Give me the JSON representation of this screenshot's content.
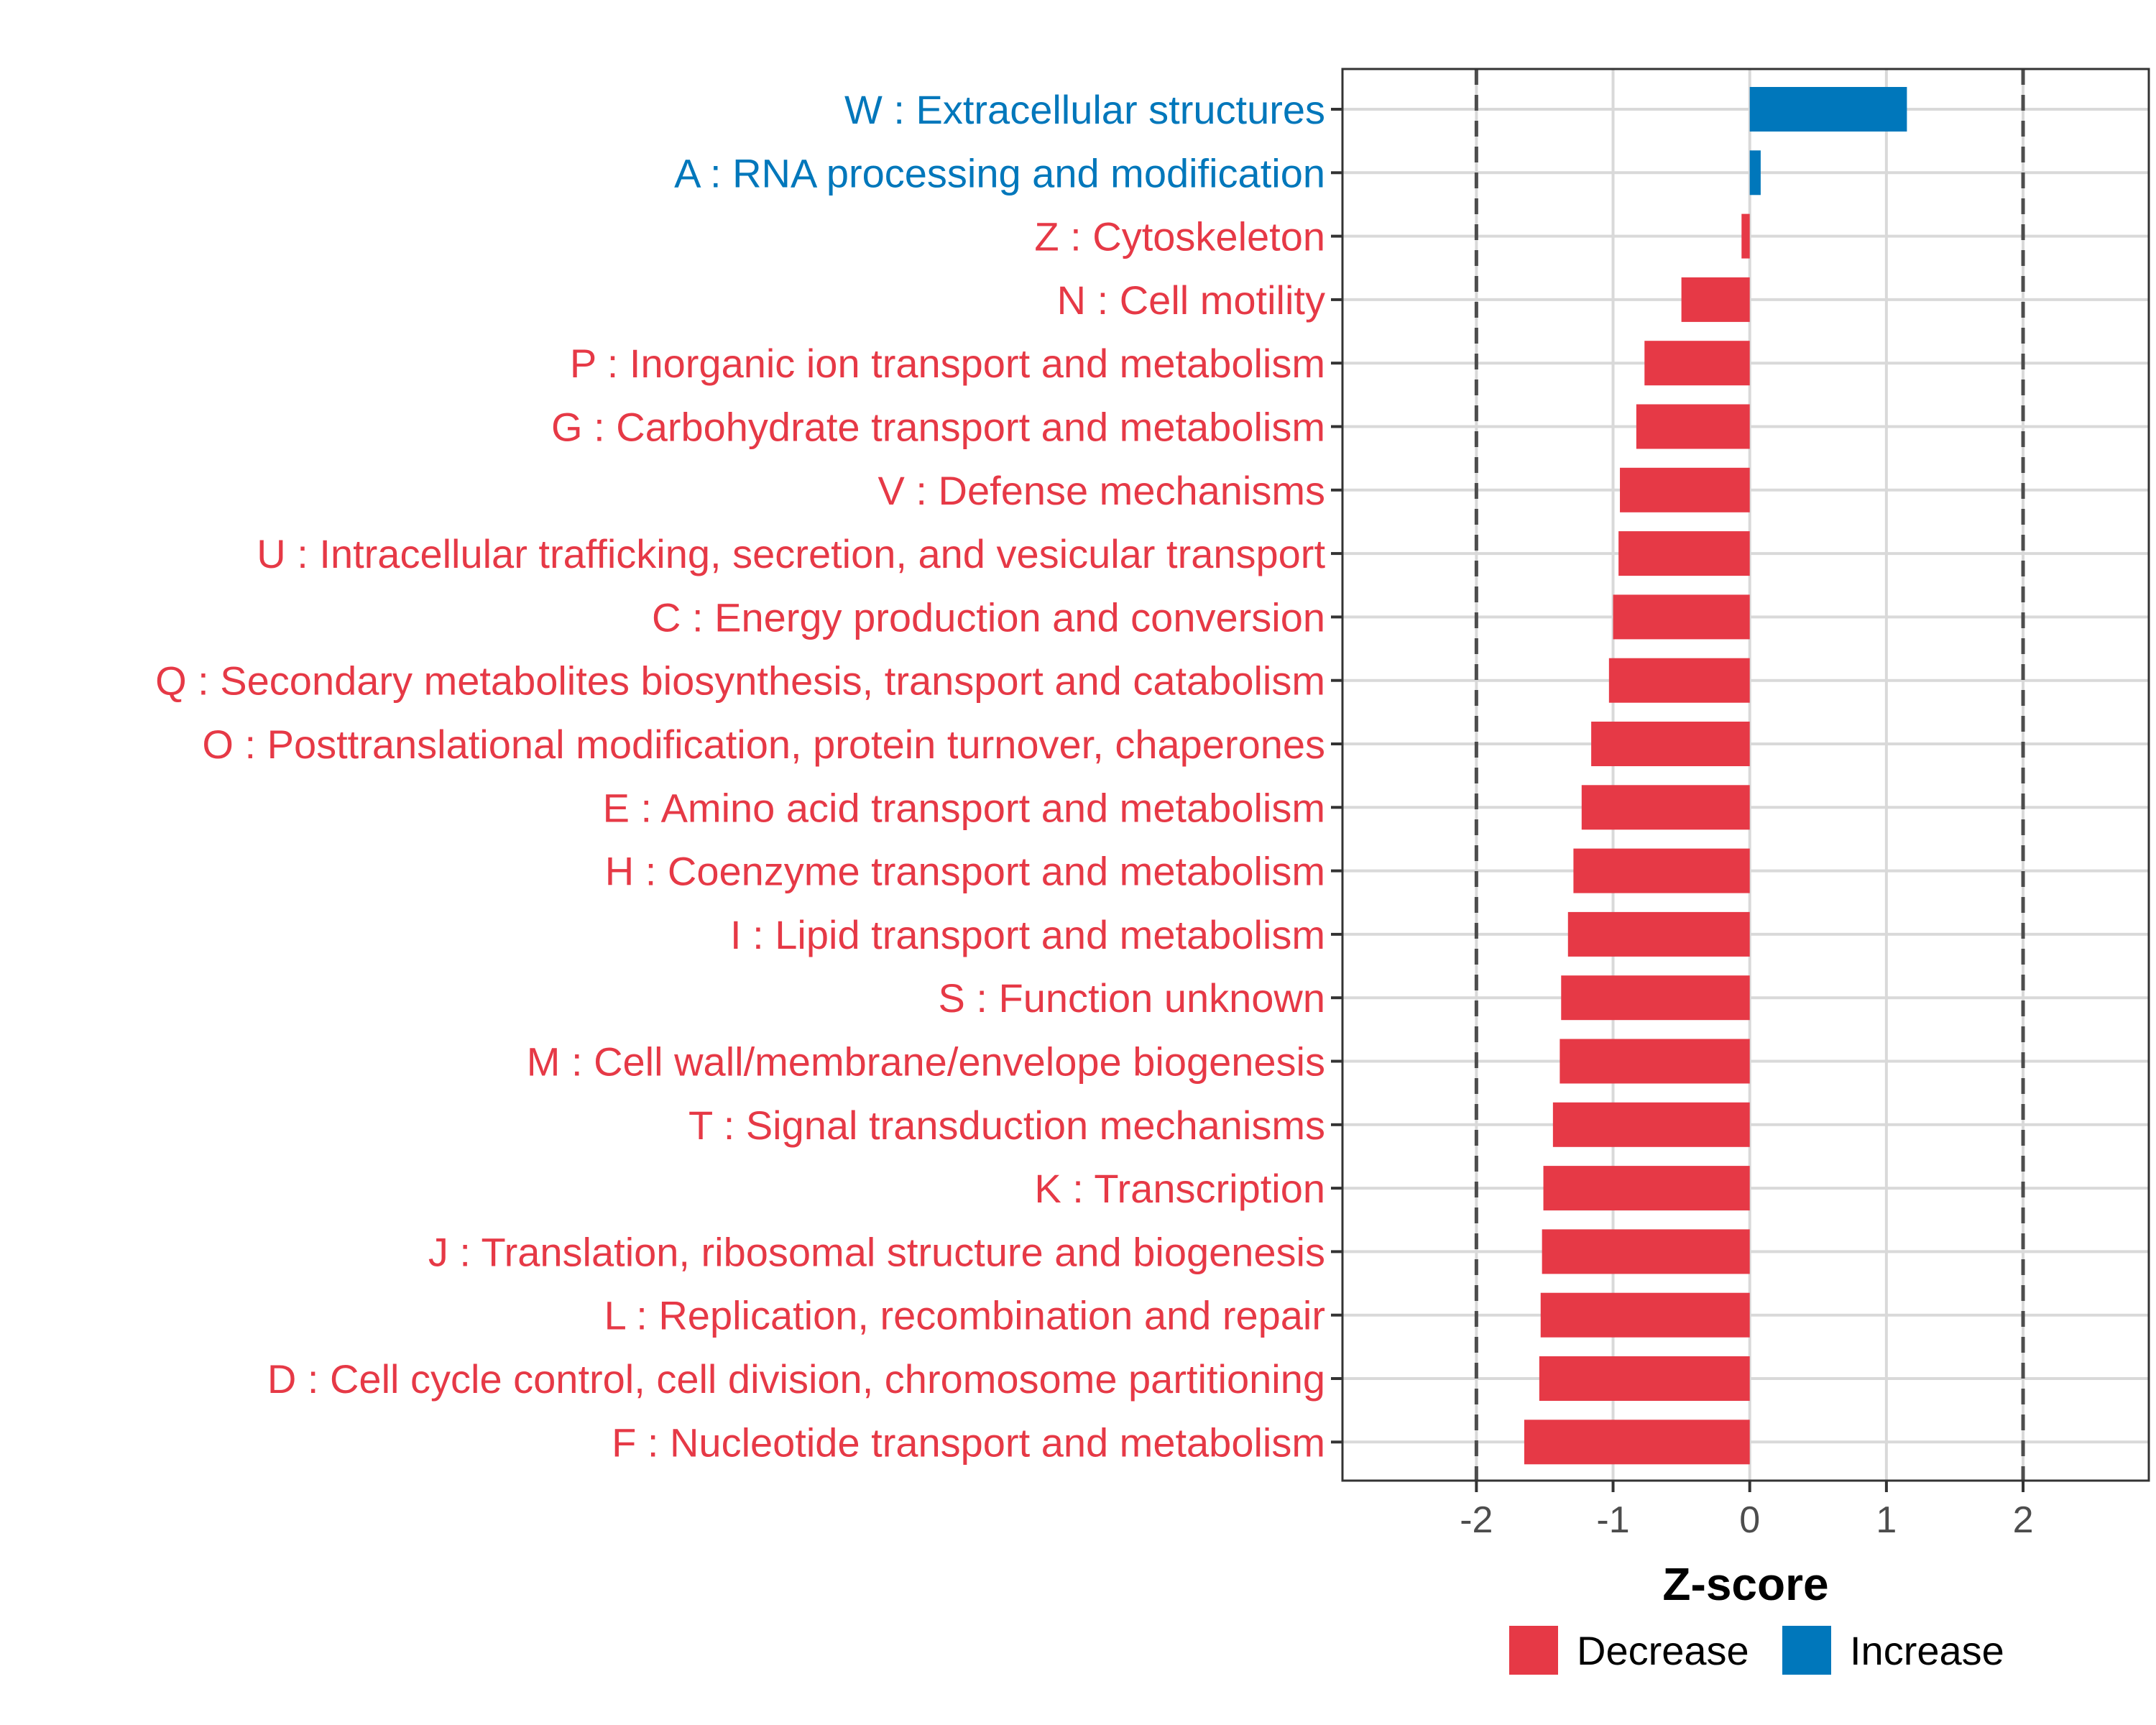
{
  "colors": {
    "decrease": "#E63946",
    "increase": "#0077BB",
    "grid": "#D9D9D9",
    "panel_border": "#333333",
    "threshold_line": "#4d4d4d",
    "tick_text": "#4d4d4d"
  },
  "chart_data": {
    "type": "bar",
    "orientation": "horizontal",
    "title": "",
    "xlabel": "Z-score",
    "ylabel": "",
    "xlim": [
      -2.98,
      2.92
    ],
    "xticks": [
      -2,
      -1,
      0,
      1,
      2
    ],
    "xtick_labels": [
      "-2",
      "-1",
      "0",
      "1",
      "2"
    ],
    "grid": true,
    "threshold_lines": [
      -2,
      2
    ],
    "legend": {
      "position": "bottom",
      "entries": [
        {
          "key": "decrease",
          "label": "Decrease"
        },
        {
          "key": "increase",
          "label": "Increase"
        }
      ]
    },
    "categories": [
      "W : Extracellular structures",
      "A : RNA processing and modification",
      "Z : Cytoskeleton",
      "N : Cell motility",
      "P : Inorganic ion transport and metabolism",
      "G : Carbohydrate transport and metabolism",
      "V : Defense mechanisms",
      "U : Intracellular trafficking, secretion, and vesicular transport",
      "C : Energy production and conversion",
      "Q : Secondary metabolites biosynthesis, transport and catabolism",
      "O : Posttranslational modification, protein turnover, chaperones",
      "E : Amino acid transport and metabolism",
      "H : Coenzyme transport and metabolism",
      "I : Lipid transport and metabolism",
      "S : Function unknown",
      "M : Cell wall/membrane/envelope biogenesis",
      "T : Signal transduction mechanisms",
      "K : Transcription",
      "J : Translation, ribosomal structure and biogenesis",
      "L : Replication, recombination and repair",
      "D : Cell cycle control, cell division, chromosome partitioning",
      "F : Nucleotide transport and metabolism"
    ],
    "values": [
      1.15,
      0.08,
      -0.06,
      -0.5,
      -0.77,
      -0.83,
      -0.95,
      -0.96,
      -1.0,
      -1.03,
      -1.16,
      -1.23,
      -1.29,
      -1.33,
      -1.38,
      -1.39,
      -1.44,
      -1.51,
      -1.52,
      -1.53,
      -1.54,
      -1.65
    ],
    "directions": [
      "increase",
      "increase",
      "decrease",
      "decrease",
      "decrease",
      "decrease",
      "decrease",
      "decrease",
      "decrease",
      "decrease",
      "decrease",
      "decrease",
      "decrease",
      "decrease",
      "decrease",
      "decrease",
      "decrease",
      "decrease",
      "decrease",
      "decrease",
      "decrease",
      "decrease"
    ]
  }
}
